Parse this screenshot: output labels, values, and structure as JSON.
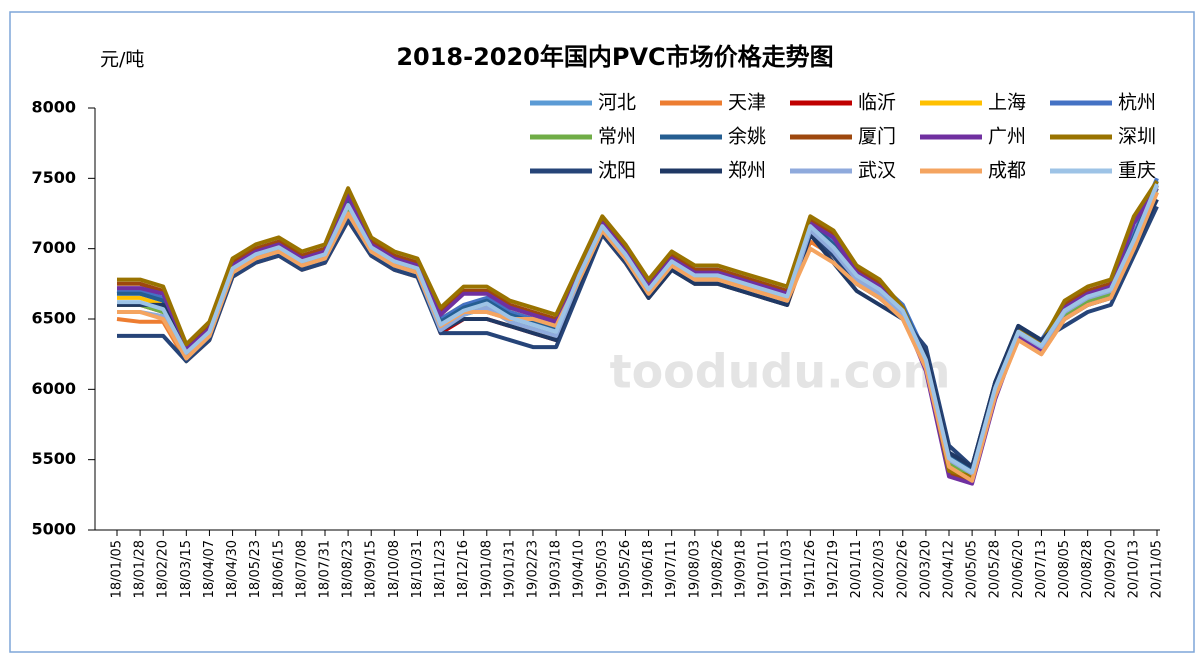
{
  "chart_data": {
    "type": "line",
    "title": "2018-2020年国内PVC市场价格走势图",
    "y_unit": "元/吨",
    "watermark": "toodudu.com",
    "categories": [
      "18/01/05",
      "18/01/28",
      "18/02/20",
      "18/03/15",
      "18/04/07",
      "18/04/30",
      "18/05/23",
      "18/06/15",
      "18/07/08",
      "18/07/31",
      "18/08/23",
      "18/09/15",
      "18/10/08",
      "18/10/31",
      "18/11/23",
      "18/12/16",
      "19/01/08",
      "19/01/31",
      "19/02/23",
      "19/03/18",
      "19/04/10",
      "19/05/03",
      "19/05/26",
      "19/06/18",
      "19/07/11",
      "19/08/03",
      "19/08/26",
      "19/09/18",
      "19/10/11",
      "19/11/03",
      "19/11/26",
      "19/12/19",
      "20/01/11",
      "20/02/03",
      "20/02/26",
      "20/03/20",
      "20/04/12",
      "20/05/05",
      "20/05/28",
      "20/06/20",
      "20/07/13",
      "20/08/05",
      "20/08/28",
      "20/09/20",
      "20/10/13",
      "20/11/05"
    ],
    "ylim": [
      5000,
      8000
    ],
    "yticks": [
      5000,
      5500,
      6000,
      6500,
      7000,
      7500,
      8000
    ],
    "legend": "top-right",
    "series": [
      {
        "name": "河北",
        "color": "#5b9bd5",
        "values": [
          6700,
          6680,
          6650,
          6280,
          6420,
          6880,
          6980,
          7020,
          6920,
          6980,
          7320,
          7020,
          6920,
          6870,
          6480,
          6580,
          6630,
          6530,
          6480,
          6430,
          6830,
          7180,
          6980,
          6720,
          6920,
          6820,
          6820,
          6770,
          6720,
          6670,
          7180,
          7020,
          6830,
          6720,
          6580,
          6230,
          5520,
          5420,
          6030,
          6420,
          6320,
          6580,
          6680,
          6730,
          7080,
          7480
        ]
      },
      {
        "name": "天津",
        "color": "#ed7d31",
        "values": [
          6500,
          6480,
          6480,
          6200,
          6350,
          6800,
          6900,
          6950,
          6850,
          6900,
          7200,
          6950,
          6850,
          6800,
          6450,
          6550,
          6550,
          6500,
          6500,
          6450,
          6750,
          7100,
          6900,
          6650,
          6850,
          6750,
          6750,
          6700,
          6650,
          6600,
          7050,
          6950,
          6750,
          6650,
          6500,
          6150,
          5450,
          5350,
          5950,
          6350,
          6250,
          6500,
          6600,
          6650,
          7000,
          7400
        ]
      },
      {
        "name": "临沂",
        "color": "#c00000",
        "values": [
          6600,
          6600,
          6550,
          6250,
          6400,
          6850,
          6950,
          7000,
          6900,
          6950,
          7250,
          7000,
          6900,
          6850,
          6400,
          6500,
          6500,
          6450,
          6400,
          6350,
          6800,
          7150,
          6950,
          6700,
          6900,
          6800,
          6800,
          6750,
          6700,
          6650,
          7100,
          7050,
          6800,
          6700,
          6550,
          6200,
          5500,
          5400,
          6000,
          6400,
          6300,
          6550,
          6650,
          6700,
          7050,
          7450
        ]
      },
      {
        "name": "上海",
        "color": "#ffc000",
        "values": [
          6650,
          6650,
          6600,
          6250,
          6400,
          6850,
          6950,
          7000,
          6900,
          6950,
          7300,
          7000,
          6900,
          6850,
          6500,
          6600,
          6600,
          6550,
          6500,
          6450,
          6800,
          7150,
          6950,
          6700,
          6900,
          6800,
          6800,
          6750,
          6700,
          6650,
          7150,
          7000,
          6800,
          6700,
          6550,
          6200,
          5500,
          5400,
          6000,
          6400,
          6300,
          6550,
          6650,
          6700,
          7050,
          7450
        ]
      },
      {
        "name": "杭州",
        "color": "#4472c4",
        "values": [
          6700,
          6700,
          6650,
          6300,
          6450,
          6900,
          7000,
          7050,
          6950,
          7000,
          7350,
          7050,
          6950,
          6900,
          6500,
          6600,
          6650,
          6550,
          6500,
          6450,
          6850,
          7200,
          7000,
          6750,
          6950,
          6850,
          6850,
          6800,
          6750,
          6700,
          7200,
          7050,
          6850,
          6750,
          6600,
          6250,
          5550,
          5450,
          6050,
          6450,
          6350,
          6600,
          6700,
          6750,
          7100,
          7500
        ]
      },
      {
        "name": "常州",
        "color": "#70ad47",
        "values": [
          6600,
          6600,
          6550,
          6200,
          6380,
          6830,
          6930,
          6980,
          6880,
          6930,
          7280,
          6980,
          6880,
          6830,
          6430,
          6530,
          6580,
          6480,
          6430,
          6380,
          6780,
          7130,
          6930,
          6680,
          6880,
          6780,
          6780,
          6730,
          6680,
          6630,
          7130,
          6980,
          6780,
          6680,
          6530,
          6180,
          5480,
          5380,
          5980,
          6380,
          6280,
          6530,
          6630,
          6680,
          7030,
          7430
        ]
      },
      {
        "name": "余姚",
        "color": "#255e91",
        "values": [
          6680,
          6680,
          6630,
          6280,
          6430,
          6880,
          6980,
          7030,
          6930,
          6980,
          7330,
          7030,
          6930,
          6880,
          6480,
          6580,
          6630,
          6530,
          6480,
          6430,
          6830,
          7180,
          6980,
          6730,
          6930,
          6830,
          6830,
          6780,
          6730,
          6680,
          7180,
          7030,
          6830,
          6730,
          6580,
          6230,
          5530,
          5430,
          6030,
          6430,
          6330,
          6580,
          6680,
          6730,
          7080,
          7480
        ]
      },
      {
        "name": "厦门",
        "color": "#9e480e",
        "values": [
          6750,
          6750,
          6700,
          6300,
          6450,
          6900,
          7000,
          7050,
          6950,
          7000,
          7400,
          7050,
          6950,
          6900,
          6550,
          6700,
          6700,
          6600,
          6550,
          6500,
          6850,
          7200,
          7000,
          6750,
          6950,
          6850,
          6850,
          6800,
          6750,
          6700,
          7200,
          7100,
          6850,
          6750,
          6550,
          6150,
          5400,
          5350,
          5950,
          6400,
          6300,
          6600,
          6700,
          6750,
          7200,
          7450
        ]
      },
      {
        "name": "广州",
        "color": "#7030a0",
        "values": [
          6720,
          6720,
          6680,
          6280,
          6430,
          6880,
          6980,
          7030,
          6930,
          6980,
          7380,
          7030,
          6930,
          6880,
          6530,
          6680,
          6680,
          6580,
          6530,
          6480,
          6830,
          7180,
          6980,
          6730,
          6930,
          6830,
          6830,
          6780,
          6730,
          6680,
          7180,
          7080,
          6830,
          6730,
          6530,
          6130,
          5380,
          5330,
          5930,
          6380,
          6280,
          6580,
          6680,
          6730,
          7180,
          7430
        ]
      },
      {
        "name": "深圳",
        "color": "#997300",
        "values": [
          6780,
          6780,
          6730,
          6320,
          6480,
          6930,
          7030,
          7080,
          6980,
          7030,
          7430,
          7080,
          6980,
          6930,
          6580,
          6730,
          6730,
          6630,
          6580,
          6530,
          6880,
          7230,
          7030,
          6780,
          6980,
          6880,
          6880,
          6830,
          6780,
          6730,
          7230,
          7130,
          6880,
          6780,
          6580,
          6180,
          5420,
          5380,
          5980,
          6430,
          6330,
          6630,
          6730,
          6780,
          7230,
          7480
        ]
      },
      {
        "name": "沈阳",
        "color": "#264478",
        "values": [
          6380,
          6380,
          6380,
          6200,
          6350,
          6800,
          6900,
          6950,
          6850,
          6900,
          7200,
          6950,
          6850,
          6800,
          6400,
          6400,
          6400,
          6350,
          6300,
          6300,
          6700,
          7100,
          6900,
          6650,
          6850,
          6750,
          6750,
          6700,
          6650,
          6600,
          7100,
          6950,
          6750,
          6650,
          6500,
          6300,
          5600,
          5450,
          6050,
          6450,
          6350,
          6450,
          6550,
          6600,
          6950,
          7300
        ]
      },
      {
        "name": "郑州",
        "color": "#1f3864",
        "values": [
          6600,
          6600,
          6600,
          6250,
          6380,
          6830,
          6930,
          6980,
          6880,
          6930,
          7250,
          6980,
          6880,
          6830,
          6420,
          6500,
          6500,
          6450,
          6400,
          6350,
          6750,
          7120,
          6920,
          6650,
          6850,
          6750,
          6750,
          6700,
          6650,
          6600,
          7100,
          6900,
          6700,
          6600,
          6500,
          6250,
          5550,
          5450,
          6050,
          6450,
          6350,
          6500,
          6600,
          6650,
          7000,
          7350
        ]
      },
      {
        "name": "武汉",
        "color": "#8faadc",
        "values": [
          6550,
          6550,
          6520,
          6220,
          6380,
          6830,
          6930,
          6980,
          6880,
          6930,
          7250,
          6980,
          6880,
          6830,
          6420,
          6530,
          6580,
          6480,
          6430,
          6380,
          6780,
          7130,
          6930,
          6680,
          6880,
          6780,
          6780,
          6730,
          6680,
          6630,
          7130,
          6980,
          6780,
          6680,
          6530,
          6200,
          5500,
          5400,
          6000,
          6400,
          6300,
          6550,
          6650,
          6700,
          7050,
          7450
        ]
      },
      {
        "name": "成都",
        "color": "#f4a460",
        "values": [
          6550,
          6550,
          6500,
          6220,
          6380,
          6830,
          6930,
          6980,
          6880,
          6930,
          7250,
          6980,
          6880,
          6830,
          6450,
          6550,
          6550,
          6500,
          6500,
          6450,
          6780,
          7130,
          6930,
          6680,
          6880,
          6780,
          6780,
          6730,
          6680,
          6630,
          7000,
          6900,
          6750,
          6650,
          6500,
          6150,
          5450,
          5350,
          5950,
          6350,
          6250,
          6500,
          6600,
          6650,
          7000,
          7400
        ]
      },
      {
        "name": "重庆",
        "color": "#9dc3e6",
        "values": [
          6620,
          6620,
          6570,
          6260,
          6410,
          6860,
          6960,
          7010,
          6910,
          6960,
          7310,
          7010,
          6910,
          6860,
          6460,
          6560,
          6610,
          6510,
          6460,
          6410,
          6810,
          7160,
          6960,
          6710,
          6910,
          6810,
          6810,
          6760,
          6710,
          6660,
          7160,
          7010,
          6810,
          6710,
          6560,
          6210,
          5510,
          5410,
          6010,
          6410,
          6310,
          6560,
          6660,
          6710,
          7060,
          7460
        ]
      }
    ]
  }
}
